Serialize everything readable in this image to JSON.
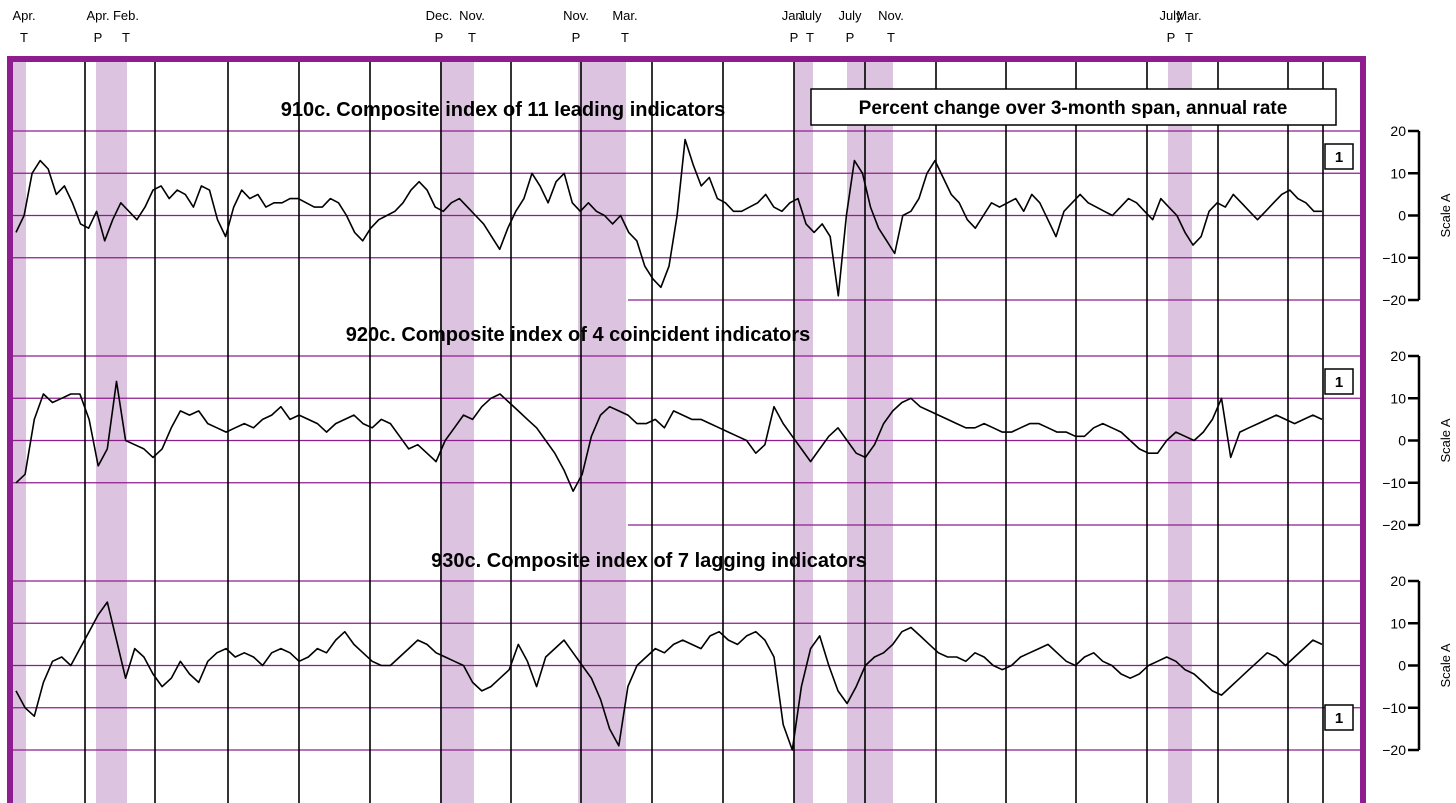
{
  "colors": {
    "frame": "#8e1e8f",
    "recession": "#dcc3df",
    "gridline": "#8e1e8f",
    "series": "#000000"
  },
  "recession_labels": [
    {
      "month": "Apr.",
      "type": "T"
    },
    {
      "month": "Apr.",
      "type": "P"
    },
    {
      "month": "Feb.",
      "type": "T"
    },
    {
      "month": "Dec.",
      "type": "P"
    },
    {
      "month": "Nov.",
      "type": "T"
    },
    {
      "month": "Nov.",
      "type": "P"
    },
    {
      "month": "Mar.",
      "type": "T"
    },
    {
      "month": "Jan.",
      "type": "P"
    },
    {
      "month": "July",
      "type": "T"
    },
    {
      "month": "July",
      "type": "P"
    },
    {
      "month": "Nov.",
      "type": "T"
    },
    {
      "month": "July",
      "type": "P"
    },
    {
      "month": "Mar.",
      "type": "T"
    }
  ],
  "span_note": "Percent change  over 3-month span,  annual rate",
  "footnote_marker": "1",
  "chart_data": [
    {
      "type": "line",
      "title": "910c. Composite index of 11 leading indicators",
      "ylabel": "Scale A",
      "ylim": [
        -20,
        20
      ],
      "yticks": [
        "20",
        "10",
        "0",
        "−10",
        "−20"
      ],
      "grid": true,
      "footnote_marker_position": "top-right",
      "series": [
        {
          "values": [
            -4,
            0,
            10,
            13,
            11,
            5,
            7,
            3,
            -2,
            -3,
            1,
            -6,
            -1,
            3,
            1,
            -1,
            2,
            6,
            7,
            4,
            6,
            5,
            2,
            7,
            6,
            -1,
            -5,
            2,
            6,
            4,
            5,
            2,
            3,
            3,
            4,
            4,
            3,
            2,
            2,
            4,
            3,
            0,
            -4,
            -6,
            -3,
            -1,
            0,
            1,
            3,
            6,
            8,
            6,
            2,
            1,
            3,
            4,
            2,
            0,
            -2,
            -5,
            -8,
            -3,
            1,
            4,
            10,
            7,
            3,
            8,
            10,
            3,
            1,
            3,
            1,
            0,
            -2,
            0,
            -4,
            -6,
            -12,
            -15,
            -17,
            -12,
            0,
            18,
            12,
            7,
            9,
            4,
            3,
            1,
            1,
            2,
            3,
            5,
            2,
            1,
            3,
            4,
            -2,
            -4,
            -2,
            -5,
            -19,
            0,
            13,
            10,
            2,
            -3,
            -6,
            -9,
            0,
            1,
            4,
            10,
            13,
            9,
            5,
            3,
            -1,
            -3,
            0,
            3,
            2,
            3,
            4,
            1,
            5,
            3,
            -1,
            -5,
            1,
            3,
            5,
            3,
            2,
            1,
            0,
            2,
            4,
            3,
            1,
            -1,
            4,
            2,
            0,
            -4,
            -7,
            -5,
            1,
            3,
            2,
            5,
            3,
            1,
            -1,
            1,
            3,
            5,
            6,
            4,
            3,
            1,
            1
          ]
        }
      ]
    },
    {
      "type": "line",
      "title": "920c. Composite index of 4 coincident indicators",
      "ylabel": "Scale A",
      "ylim": [
        -20,
        20
      ],
      "yticks": [
        "20",
        "10",
        "0",
        "−10",
        "−20"
      ],
      "grid": true,
      "footnote_marker_position": "top-right",
      "series": [
        {
          "values": [
            -10,
            -8,
            5,
            11,
            9,
            10,
            11,
            11,
            5,
            -6,
            -2,
            14,
            0,
            -1,
            -2,
            -4,
            -2,
            3,
            7,
            6,
            7,
            4,
            3,
            2,
            3,
            4,
            3,
            5,
            6,
            8,
            5,
            6,
            5,
            4,
            2,
            4,
            5,
            6,
            4,
            3,
            5,
            4,
            1,
            -2,
            -1,
            -3,
            -5,
            0,
            3,
            6,
            5,
            8,
            10,
            11,
            9,
            7,
            5,
            3,
            0,
            -3,
            -7,
            -12,
            -8,
            1,
            6,
            8,
            7,
            6,
            4,
            4,
            5,
            3,
            7,
            6,
            5,
            5,
            4,
            3,
            2,
            1,
            0,
            -3,
            -1,
            8,
            4,
            1,
            -2,
            -5,
            -2,
            1,
            3,
            0,
            -3,
            -4,
            -1,
            4,
            7,
            9,
            10,
            8,
            7,
            6,
            5,
            4,
            3,
            3,
            4,
            3,
            2,
            2,
            3,
            4,
            4,
            3,
            2,
            2,
            1,
            1,
            3,
            4,
            3,
            2,
            0,
            -2,
            -3,
            -3,
            0,
            2,
            1,
            0,
            2,
            5,
            10,
            -4,
            2,
            3,
            4,
            5,
            6,
            5,
            4,
            5,
            6,
            5
          ]
        }
      ]
    },
    {
      "type": "line",
      "title": "930c. Composite index of 7 lagging indicators",
      "ylabel": "Scale A",
      "ylim": [
        -20,
        20
      ],
      "yticks": [
        "20",
        "10",
        "0",
        "−10",
        "−20"
      ],
      "grid": true,
      "footnote_marker_position": "bottom-right",
      "series": [
        {
          "values": [
            -6,
            -10,
            -12,
            -4,
            1,
            2,
            0,
            4,
            8,
            12,
            15,
            6,
            -3,
            4,
            2,
            -2,
            -5,
            -3,
            1,
            -2,
            -4,
            1,
            3,
            4,
            2,
            3,
            2,
            0,
            3,
            4,
            3,
            1,
            2,
            4,
            3,
            6,
            8,
            5,
            3,
            1,
            0,
            0,
            2,
            4,
            6,
            5,
            3,
            2,
            1,
            0,
            -4,
            -6,
            -5,
            -3,
            -1,
            5,
            1,
            -5,
            2,
            4,
            6,
            3,
            0,
            -3,
            -8,
            -15,
            -19,
            -5,
            0,
            2,
            4,
            3,
            5,
            6,
            5,
            4,
            7,
            8,
            6,
            5,
            7,
            8,
            6,
            2,
            -14,
            -20,
            -5,
            4,
            7,
            0,
            -6,
            -9,
            -5,
            0,
            2,
            3,
            5,
            8,
            9,
            7,
            5,
            3,
            2,
            2,
            1,
            3,
            2,
            0,
            -1,
            0,
            2,
            3,
            4,
            5,
            3,
            1,
            0,
            2,
            3,
            1,
            0,
            -2,
            -3,
            -2,
            0,
            1,
            2,
            1,
            -1,
            -2,
            -4,
            -6,
            -7,
            -5,
            -3,
            -1,
            1,
            3,
            2,
            0,
            2,
            4,
            6,
            5
          ]
        }
      ]
    }
  ]
}
